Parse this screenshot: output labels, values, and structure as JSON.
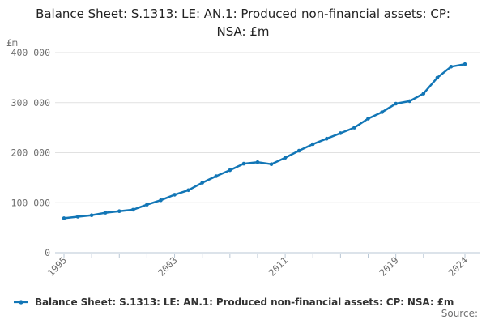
{
  "title": "Balance Sheet: S.1313: LE: AN.1: Produced non-financial assets: CP: NSA: £m",
  "y_unit_label": "£m",
  "source_label": "Source:",
  "legend": {
    "marker_icon": "line-dot-marker",
    "label": "Balance Sheet: S.1313: LE: AN.1: Produced non-financial assets: CP: NSA: £m"
  },
  "colors": {
    "line": "#1276b6",
    "grid": "#e1e1e1",
    "axis": "#b9c7d5",
    "tick_label": "#6e6e6e",
    "title_text": "#222222",
    "legend_text": "#333333",
    "source_text": "#707071",
    "background": "#ffffff"
  },
  "chart_data": {
    "type": "line",
    "title": "Balance Sheet: S.1313: LE: AN.1: Produced non-financial assets: CP: NSA: £m",
    "xlabel": "",
    "ylabel": "£m",
    "grid": "horizontal",
    "legend_position": "bottom",
    "marker": "dot",
    "xlim": [
      1995,
      2024
    ],
    "ylim": [
      0,
      400000
    ],
    "x": [
      1995,
      1996,
      1997,
      1998,
      1999,
      2000,
      2001,
      2002,
      2003,
      2004,
      2005,
      2006,
      2007,
      2008,
      2009,
      2010,
      2011,
      2012,
      2013,
      2014,
      2015,
      2016,
      2017,
      2018,
      2019,
      2020,
      2021,
      2022,
      2023,
      2024
    ],
    "series": [
      {
        "name": "Balance Sheet: S.1313: LE: AN.1: Produced non-financial assets: CP: NSA: £m",
        "values": [
          69000,
          72000,
          75000,
          80000,
          83000,
          86000,
          96000,
          105000,
          116000,
          125000,
          140000,
          153000,
          165000,
          178000,
          181000,
          177000,
          190000,
          204000,
          217000,
          228000,
          239000,
          250000,
          268000,
          281000,
          298000,
          303000,
          318000,
          350000,
          372000,
          377000
        ]
      }
    ],
    "y_ticks": [
      0,
      100000,
      200000,
      300000,
      400000
    ],
    "y_tick_labels": [
      "0",
      "100 000",
      "200 000",
      "300 000",
      "400 000"
    ],
    "x_ticks": [
      1995,
      1997,
      1999,
      2001,
      2003,
      2005,
      2007,
      2009,
      2011,
      2013,
      2015,
      2017,
      2019,
      2021,
      2024
    ],
    "x_label_years": [
      1995,
      2003,
      2011,
      2019,
      2024
    ],
    "x_tick_labels": [
      "1995",
      "2003",
      "2011",
      "2019",
      "2024"
    ]
  }
}
